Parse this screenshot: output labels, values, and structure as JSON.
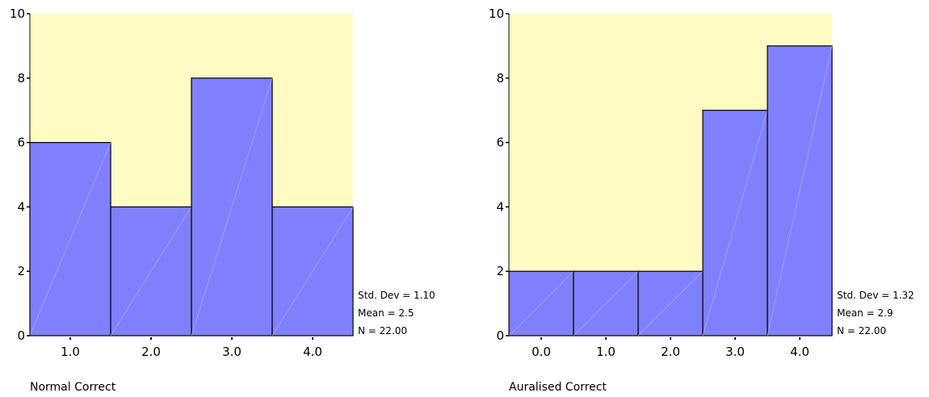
{
  "chart_data": [
    {
      "type": "bar",
      "xlabel": "Normal Correct",
      "categories": [
        "1.0",
        "2.0",
        "3.0",
        "4.0"
      ],
      "values": [
        6,
        4,
        8,
        4
      ],
      "ylim": [
        0,
        10
      ],
      "yticks": [
        "0",
        "2",
        "4",
        "6",
        "8",
        "10"
      ],
      "stats": [
        "Std. Dev = 1.10",
        "Mean = 2.5",
        "N = 22.00"
      ],
      "colors": {
        "plot_bg": "#FFFBC2",
        "bar_fill": "#8080FF",
        "bar_edge": "#000000"
      }
    },
    {
      "type": "bar",
      "xlabel": "Auralised Correct",
      "categories": [
        "0.0",
        "1.0",
        "2.0",
        "3.0",
        "4.0"
      ],
      "values": [
        2,
        2,
        2,
        7,
        9
      ],
      "ylim": [
        0,
        10
      ],
      "yticks": [
        "0",
        "2",
        "4",
        "6",
        "8",
        "10"
      ],
      "stats": [
        "Std. Dev = 1.32",
        "Mean = 2.9",
        "N = 22.00"
      ],
      "colors": {
        "plot_bg": "#FFFBC2",
        "bar_fill": "#8080FF",
        "bar_edge": "#000000"
      }
    }
  ]
}
